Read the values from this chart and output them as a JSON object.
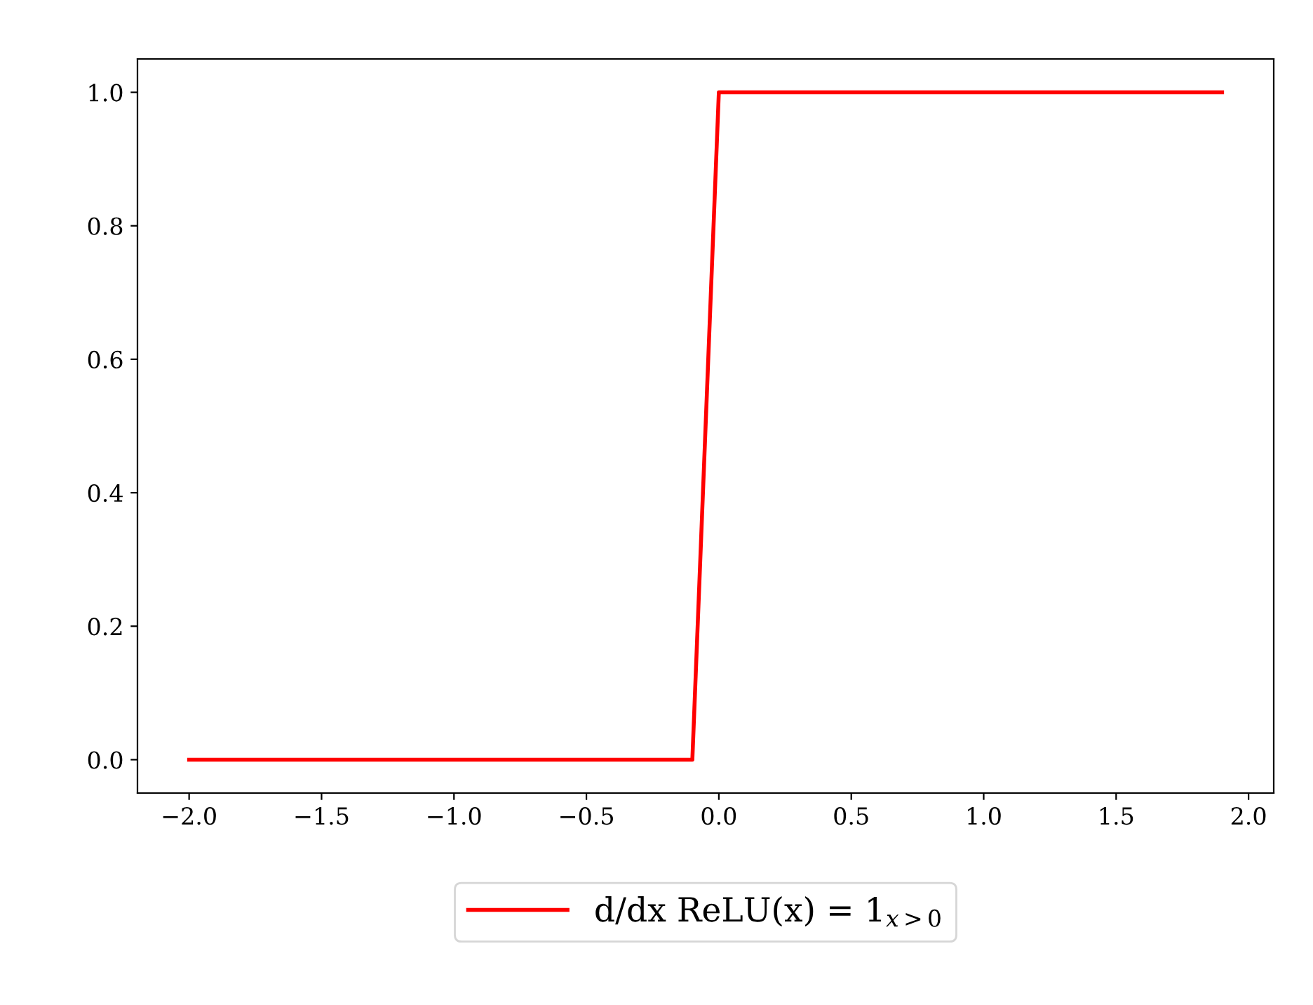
{
  "chart_data": {
    "type": "line",
    "x": [
      -2.0,
      -0.1,
      0.0,
      1.9
    ],
    "series": [
      {
        "name": "d/dx ReLU(x) = 1$_{x>0}$",
        "color": "#ff0000",
        "values": [
          0,
          0,
          1,
          1
        ]
      }
    ],
    "xlim": [
      -2.195,
      2.095
    ],
    "xticks": [
      {
        "value": -2.0,
        "label": "−2.0"
      },
      {
        "value": -1.5,
        "label": "−1.5"
      },
      {
        "value": -1.0,
        "label": "−1.0"
      },
      {
        "value": -0.5,
        "label": "−0.5"
      },
      {
        "value": 0.0,
        "label": "0.0"
      },
      {
        "value": 0.5,
        "label": "0.5"
      },
      {
        "value": 1.0,
        "label": "1.0"
      },
      {
        "value": 1.5,
        "label": "1.5"
      },
      {
        "value": 2.0,
        "label": "2.0"
      }
    ],
    "ylim": [
      -0.05,
      1.05
    ],
    "yticks": [
      {
        "value": 0.0,
        "label": "0.0"
      },
      {
        "value": 0.2,
        "label": "0.2"
      },
      {
        "value": 0.4,
        "label": "0.4"
      },
      {
        "value": 0.6,
        "label": "0.6"
      },
      {
        "value": 0.8,
        "label": "0.8"
      },
      {
        "value": 1.0,
        "label": "1.0"
      }
    ],
    "grid": false,
    "legend": "bottom",
    "marker": "none",
    "line_style": "solid"
  }
}
